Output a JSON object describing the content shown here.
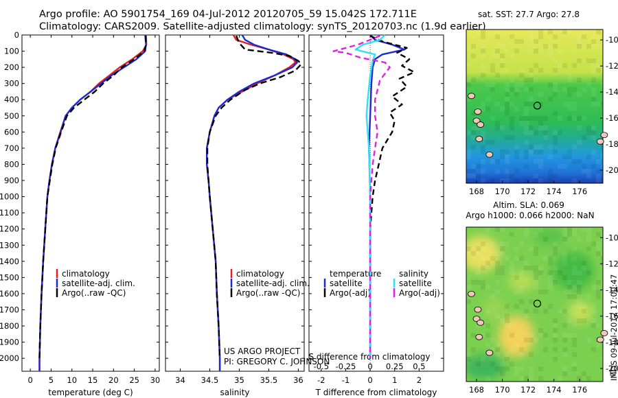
{
  "header": {
    "line1": "Argo profile: AO 5901754_169 04-Jul-2012 20120705_59 15.042S 172.711E",
    "line2": "Climatology: CARS2009. Satellite-adjusted climatology: synTS_20120703.nc (1.9d earlier)"
  },
  "credits": {
    "project": "US ARGO PROJECT",
    "pi": "PI: GREGORY C. JOHNSON",
    "stamp": "IMOS 09-Jul-2012 17:00:47"
  },
  "colors": {
    "climatology": "#e02020",
    "satellite": "#1c2bd0",
    "argo": "#000000",
    "salinity_sat": "#30e0f0",
    "salinity_argo": "#e020e0"
  },
  "chart_data": [
    {
      "id": "temperature",
      "type": "line",
      "xlabel": "temperature (deg C)",
      "ylabel": "",
      "xlim": [
        -2,
        31
      ],
      "ylim": [
        2080,
        0
      ],
      "xticks": [
        0,
        5,
        10,
        15,
        20,
        25,
        30
      ],
      "yticks": [
        0,
        100,
        200,
        300,
        400,
        500,
        600,
        700,
        800,
        900,
        1000,
        1100,
        1200,
        1300,
        1400,
        1500,
        1600,
        1700,
        1800,
        1900,
        2000
      ],
      "legend": [
        "climatology",
        "satellite-adj. clim.",
        "Argo(..raw -QC)"
      ],
      "legend_position": "bottom-center",
      "series": [
        {
          "name": "climatology",
          "points": [
            [
              27.8,
              0
            ],
            [
              27.9,
              60
            ],
            [
              27.0,
              100
            ],
            [
              24.5,
              150
            ],
            [
              21.5,
              200
            ],
            [
              19.0,
              250
            ],
            [
              16.5,
              300
            ],
            [
              14.5,
              350
            ],
            [
              12.0,
              400
            ],
            [
              10.0,
              450
            ],
            [
              8.5,
              500
            ],
            [
              7.2,
              600
            ],
            [
              6.0,
              700
            ],
            [
              5.2,
              800
            ],
            [
              4.6,
              900
            ],
            [
              4.1,
              1000
            ],
            [
              3.6,
              1200
            ],
            [
              3.1,
              1400
            ],
            [
              2.7,
              1600
            ],
            [
              2.4,
              1800
            ],
            [
              2.2,
              2000
            ],
            [
              2.2,
              2080
            ]
          ]
        },
        {
          "name": "satellite-adj. clim.",
          "points": [
            [
              27.6,
              0
            ],
            [
              27.8,
              60
            ],
            [
              27.6,
              100
            ],
            [
              25.5,
              150
            ],
            [
              22.5,
              200
            ],
            [
              19.5,
              250
            ],
            [
              17.0,
              300
            ],
            [
              14.5,
              350
            ],
            [
              12.0,
              400
            ],
            [
              10.0,
              450
            ],
            [
              8.5,
              500
            ],
            [
              7.3,
              600
            ],
            [
              6.0,
              700
            ],
            [
              5.2,
              800
            ],
            [
              4.6,
              900
            ],
            [
              4.1,
              1000
            ],
            [
              3.6,
              1200
            ],
            [
              3.1,
              1400
            ],
            [
              2.7,
              1600
            ],
            [
              2.4,
              1800
            ],
            [
              2.2,
              2000
            ],
            [
              2.2,
              2080
            ]
          ]
        },
        {
          "name": "Argo(..raw -QC)",
          "points": [
            [
              27.7,
              5
            ],
            [
              27.8,
              60
            ],
            [
              27.4,
              100
            ],
            [
              25.0,
              150
            ],
            [
              22.0,
              200
            ],
            [
              20.0,
              250
            ],
            [
              17.5,
              300
            ],
            [
              15.5,
              350
            ],
            [
              13.0,
              400
            ],
            [
              10.5,
              450
            ],
            [
              8.8,
              500
            ],
            [
              7.4,
              600
            ],
            [
              6.1,
              700
            ],
            [
              5.3,
              800
            ],
            [
              4.7,
              900
            ],
            [
              4.1,
              1000
            ],
            [
              3.6,
              1200
            ],
            [
              3.1,
              1400
            ],
            [
              2.7,
              1600
            ],
            [
              2.4,
              1800
            ],
            [
              2.2,
              2000
            ]
          ]
        }
      ]
    },
    {
      "id": "salinity",
      "type": "line",
      "xlabel": "salinity",
      "ylabel": "",
      "xlim": [
        33.75,
        36.1
      ],
      "ylim": [
        2080,
        0
      ],
      "xticks": [
        34,
        34.5,
        35,
        35.5,
        36
      ],
      "legend": [
        "climatology",
        "satellite-adj. clim.",
        "Argo(..raw -QC)"
      ],
      "legend_position": "bottom-center",
      "series": [
        {
          "name": "climatology",
          "points": [
            [
              34.9,
              0
            ],
            [
              34.95,
              30
            ],
            [
              35.2,
              60
            ],
            [
              35.5,
              90
            ],
            [
              35.75,
              120
            ],
            [
              35.92,
              150
            ],
            [
              35.95,
              170
            ],
            [
              35.85,
              200
            ],
            [
              35.6,
              250
            ],
            [
              35.3,
              300
            ],
            [
              35.05,
              350
            ],
            [
              34.8,
              400
            ],
            [
              34.65,
              450
            ],
            [
              34.58,
              500
            ],
            [
              34.5,
              600
            ],
            [
              34.45,
              700
            ],
            [
              34.45,
              800
            ],
            [
              34.48,
              900
            ],
            [
              34.5,
              1000
            ],
            [
              34.55,
              1200
            ],
            [
              34.6,
              1400
            ],
            [
              34.62,
              1600
            ],
            [
              34.65,
              1800
            ],
            [
              34.67,
              2000
            ],
            [
              34.67,
              2080
            ]
          ]
        },
        {
          "name": "satellite-adj. clim.",
          "points": [
            [
              35.05,
              0
            ],
            [
              35.1,
              30
            ],
            [
              35.25,
              60
            ],
            [
              35.5,
              90
            ],
            [
              35.8,
              120
            ],
            [
              35.95,
              150
            ],
            [
              35.98,
              170
            ],
            [
              35.9,
              200
            ],
            [
              35.6,
              250
            ],
            [
              35.25,
              300
            ],
            [
              35.0,
              350
            ],
            [
              34.8,
              400
            ],
            [
              34.65,
              450
            ],
            [
              34.58,
              500
            ],
            [
              34.5,
              600
            ],
            [
              34.45,
              700
            ],
            [
              34.45,
              800
            ],
            [
              34.48,
              900
            ],
            [
              34.5,
              1000
            ],
            [
              34.55,
              1200
            ],
            [
              34.6,
              1400
            ],
            [
              34.62,
              1600
            ],
            [
              34.65,
              1800
            ],
            [
              34.67,
              2000
            ],
            [
              34.67,
              2080
            ]
          ]
        },
        {
          "name": "Argo(..raw -QC)",
          "points": [
            [
              34.95,
              5
            ],
            [
              35.0,
              50
            ],
            [
              35.1,
              90
            ],
            [
              35.55,
              110
            ],
            [
              35.85,
              130
            ],
            [
              36.0,
              160
            ],
            [
              36.05,
              180
            ],
            [
              35.95,
              220
            ],
            [
              35.7,
              260
            ],
            [
              35.35,
              300
            ],
            [
              35.1,
              340
            ],
            [
              34.85,
              400
            ],
            [
              34.7,
              450
            ],
            [
              34.6,
              500
            ],
            [
              34.5,
              600
            ],
            [
              34.46,
              700
            ],
            [
              34.46,
              800
            ],
            [
              34.48,
              900
            ],
            [
              34.5,
              1000
            ],
            [
              34.55,
              1200
            ],
            [
              34.6,
              1400
            ],
            [
              34.62,
              1600
            ],
            [
              34.65,
              1800
            ],
            [
              34.67,
              2000
            ]
          ]
        }
      ]
    },
    {
      "id": "difference",
      "type": "line",
      "xlabel": "T difference from climatology",
      "xlabel2": "S difference from climatology",
      "ylabel": "",
      "xlim": [
        -2.5,
        3
      ],
      "ylim": [
        2080,
        0
      ],
      "xticks": [
        -2,
        -1,
        0,
        1,
        2
      ],
      "xticklabels": [
        "-2",
        "-1",
        "0",
        "1",
        "2"
      ],
      "xticks2": [
        -2,
        -1,
        0,
        1,
        2
      ],
      "xticklabels2": [
        "-0.5",
        "-0.25",
        "0",
        "0.25",
        "0.5"
      ],
      "legend": [
        "temperature",
        "satellite",
        "Argo(-adj)",
        "salinity",
        "satellite",
        "Argo(-adj)"
      ],
      "legend_position": "bottom",
      "series": [
        {
          "name": "satellite",
          "quantity": "temperature",
          "points": [
            [
              0,
              0
            ],
            [
              0.2,
              30
            ],
            [
              0.9,
              60
            ],
            [
              1.4,
              90
            ],
            [
              0.5,
              120
            ],
            [
              0.2,
              150
            ],
            [
              0.1,
              200
            ],
            [
              0.05,
              300
            ],
            [
              0.0,
              500
            ],
            [
              -0.05,
              700
            ],
            [
              0.0,
              1000
            ],
            [
              0.0,
              2000
            ]
          ]
        },
        {
          "name": "Argo(-adj)",
          "quantity": "temperature",
          "points": [
            [
              0,
              5
            ],
            [
              0.5,
              40
            ],
            [
              1.5,
              80
            ],
            [
              1.1,
              110
            ],
            [
              1.6,
              150
            ],
            [
              1.3,
              190
            ],
            [
              1.8,
              230
            ],
            [
              1.2,
              270
            ],
            [
              1.5,
              320
            ],
            [
              0.9,
              380
            ],
            [
              1.3,
              430
            ],
            [
              0.8,
              480
            ],
            [
              1.0,
              530
            ],
            [
              0.9,
              600
            ],
            [
              0.7,
              650
            ],
            [
              0.5,
              700
            ],
            [
              0.35,
              800
            ],
            [
              0.2,
              900
            ],
            [
              0.1,
              1000
            ],
            [
              0.05,
              1100
            ],
            [
              0.0,
              1200
            ],
            [
              0.0,
              1400
            ],
            [
              0.0,
              1600
            ],
            [
              0.0,
              1800
            ],
            [
              0.0,
              2000
            ]
          ]
        },
        {
          "name": "satellite",
          "quantity": "salinity",
          "points": [
            [
              0.6,
              0
            ],
            [
              0.4,
              30
            ],
            [
              -0.3,
              60
            ],
            [
              -0.6,
              90
            ],
            [
              0.2,
              120
            ],
            [
              0.1,
              160
            ],
            [
              0.0,
              250
            ],
            [
              -0.1,
              400
            ],
            [
              -0.15,
              500
            ],
            [
              -0.05,
              700
            ],
            [
              0.0,
              1000
            ],
            [
              0.0,
              2000
            ]
          ]
        },
        {
          "name": "Argo(-adj)",
          "quantity": "salinity",
          "points": [
            [
              0.4,
              5
            ],
            [
              -0.5,
              60
            ],
            [
              -1.5,
              100
            ],
            [
              -1.0,
              110
            ],
            [
              -0.4,
              140
            ],
            [
              0.6,
              170
            ],
            [
              0.8,
              200
            ],
            [
              0.4,
              280
            ],
            [
              0.2,
              400
            ],
            [
              0.2,
              500
            ],
            [
              0.3,
              600
            ],
            [
              0.2,
              700
            ],
            [
              0.1,
              800
            ],
            [
              0.0,
              1000
            ],
            [
              0.0,
              2000
            ]
          ]
        }
      ]
    },
    {
      "id": "sst-map",
      "type": "heatmap",
      "title": "sat. SST: 27.7 Argo: 27.8",
      "xticks": [
        168,
        170,
        172,
        174,
        176
      ],
      "yticks": [
        -10,
        -12,
        -14,
        -16,
        -18,
        -20
      ],
      "xlim": [
        167.2,
        177.8
      ],
      "ylim": [
        -21,
        -9.2
      ],
      "argo_position": [
        172.711,
        -15.042
      ]
    },
    {
      "id": "sla-map",
      "type": "heatmap",
      "title": "Altim. SLA: 0.069",
      "subtitle": "Argo h1000: 0.066 h2000: NaN",
      "xticks": [
        168,
        170,
        172,
        174,
        176
      ],
      "yticks": [
        -10,
        -12,
        -14,
        -16,
        -18,
        -20
      ],
      "xlim": [
        167.2,
        177.8
      ],
      "ylim": [
        -21,
        -9.2
      ],
      "argo_position": [
        172.711,
        -15.042
      ]
    }
  ]
}
